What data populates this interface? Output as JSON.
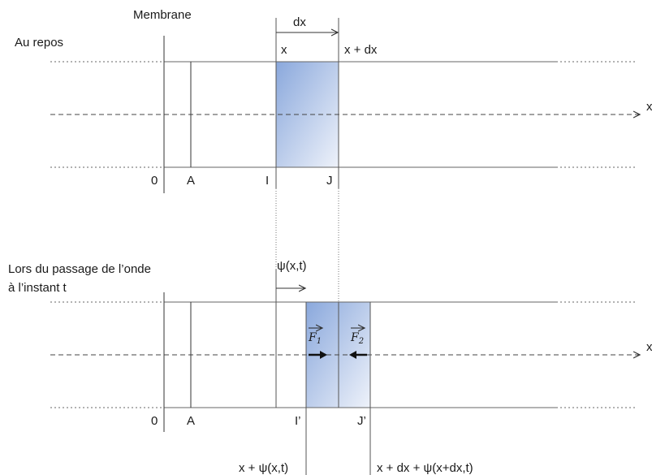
{
  "labels": {
    "membrane": "Membrane",
    "at_rest": "Au repos",
    "during_line1": "Lors du passage de l’onde",
    "during_line2": "à l’instant t",
    "dx": "dx",
    "x": "x",
    "x_plus_dx": "x + dx",
    "axis_x": "x",
    "origin": "0",
    "point_a": "A",
    "point_i": "I",
    "point_j": "J",
    "psi": "ψ(x,t)",
    "point_i_prime": "I’",
    "point_j_prime": "J’",
    "x_plus_psi": "x + ψ(x,t)",
    "x_dx_psi": "x + dx + ψ(x+dx,t)",
    "force1_letter": "F",
    "force1_index": "1",
    "force2_letter": "F",
    "force2_index": "2"
  },
  "colors": {
    "fill_dark": "#8aa8dc",
    "fill_light": "#e8eef9",
    "lines": "#666666",
    "axis": "#444444"
  }
}
